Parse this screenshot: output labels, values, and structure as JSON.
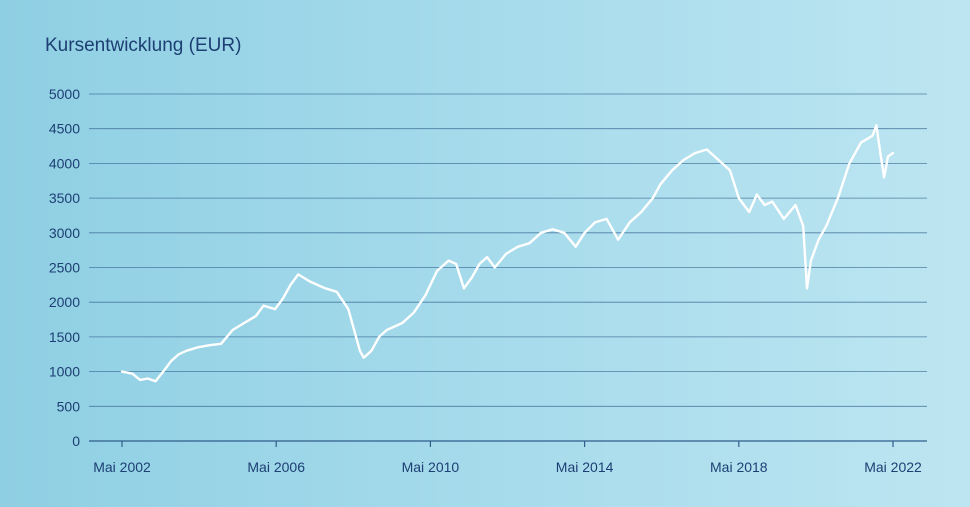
{
  "chart_data": {
    "type": "line",
    "title": "Kursentwicklung (EUR)",
    "ylim": [
      0,
      5000
    ],
    "yticks": [
      0,
      500,
      1000,
      1500,
      2000,
      2500,
      3000,
      3500,
      4000,
      4500,
      5000
    ],
    "xlim": [
      2002.33,
      2022.33
    ],
    "xticks": [
      {
        "value": 2002.33,
        "label": "Mai 2002"
      },
      {
        "value": 2006.33,
        "label": "Mai 2006"
      },
      {
        "value": 2010.33,
        "label": "Mai 2010"
      },
      {
        "value": 2014.33,
        "label": "Mai 2014"
      },
      {
        "value": 2018.33,
        "label": "Mai 2018"
      },
      {
        "value": 2022.33,
        "label": "Mai 2022"
      }
    ],
    "grid": true,
    "colors": {
      "line": "#ffffff",
      "grid": "#2f5d8c",
      "text": "#1d3f73"
    },
    "series": [
      {
        "x": [
          2002.33,
          2002.6,
          2002.8,
          2003.0,
          2003.2,
          2003.4,
          2003.6,
          2003.8,
          2004.0,
          2004.3,
          2004.6,
          2004.9,
          2005.2,
          2005.5,
          2005.8,
          2006.0,
          2006.3,
          2006.5,
          2006.7,
          2006.9,
          2007.2,
          2007.4,
          2007.6,
          2007.9,
          2008.2,
          2008.5,
          2008.6,
          2008.8,
          2009.0,
          2009.2,
          2009.4,
          2009.6,
          2009.9,
          2010.2,
          2010.5,
          2010.8,
          2011.0,
          2011.2,
          2011.4,
          2011.6,
          2011.8,
          2012.0,
          2012.3,
          2012.6,
          2012.9,
          2013.2,
          2013.5,
          2013.8,
          2014.1,
          2014.33,
          2014.6,
          2014.9,
          2015.2,
          2015.5,
          2015.8,
          2016.1,
          2016.3,
          2016.6,
          2016.9,
          2017.2,
          2017.5,
          2017.8,
          2018.1,
          2018.33,
          2018.6,
          2018.8,
          2019.0,
          2019.2,
          2019.5,
          2019.8,
          2020.0,
          2020.1,
          2020.2,
          2020.4,
          2020.6,
          2020.9,
          2021.2,
          2021.5,
          2021.8,
          2021.9,
          2022.0,
          2022.1,
          2022.2,
          2022.33
        ],
        "y": [
          1000,
          970,
          880,
          900,
          860,
          1000,
          1150,
          1250,
          1300,
          1350,
          1380,
          1400,
          1600,
          1700,
          1800,
          1950,
          1900,
          2050,
          2250,
          2400,
          2300,
          2250,
          2200,
          2150,
          1900,
          1300,
          1200,
          1300,
          1500,
          1600,
          1650,
          1700,
          1850,
          2100,
          2450,
          2600,
          2550,
          2200,
          2350,
          2550,
          2650,
          2500,
          2700,
          2800,
          2850,
          3000,
          3050,
          3000,
          2800,
          3000,
          3150,
          3200,
          2900,
          3150,
          3300,
          3500,
          3700,
          3900,
          4050,
          4150,
          4200,
          4050,
          3900,
          3500,
          3300,
          3550,
          3400,
          3450,
          3200,
          3400,
          3100,
          2200,
          2600,
          2900,
          3100,
          3500,
          4000,
          4300,
          4400,
          4550,
          4150,
          3800,
          4100,
          4150
        ]
      }
    ]
  }
}
